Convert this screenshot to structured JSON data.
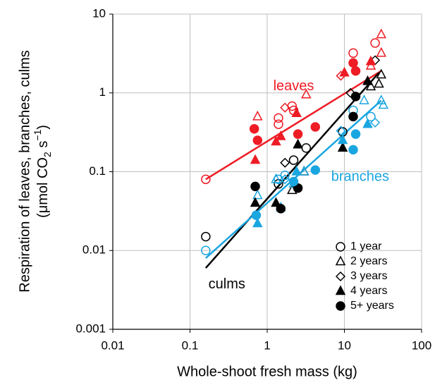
{
  "chart_data": {
    "type": "scatter",
    "xlabel": "Whole-shoot fresh mass (kg)",
    "ylabel": [
      "Respiration of leaves, branches, culms",
      "(μmol CO",
      "2",
      " s",
      "−1",
      ")"
    ],
    "log_x": true,
    "log_y": true,
    "grid": true,
    "xlim": [
      0.01,
      100
    ],
    "xticks": [
      0.01,
      0.1,
      1,
      10,
      100
    ],
    "ylim": [
      0.001,
      10
    ],
    "yticks": [
      0.001,
      0.01,
      0.1,
      1,
      10
    ],
    "legend": "lower right",
    "annotations": [
      {
        "text": "leaves",
        "color": "#ee1c25",
        "x": 2.2,
        "y": 1.2
      },
      {
        "text": "branches",
        "color": "#1aa6e0",
        "x": 16,
        "y": 0.085
      },
      {
        "text": "culms",
        "color": "#000000",
        "x": 0.3,
        "y": 0.0037
      }
    ],
    "series": [
      {
        "name": "1 year",
        "marker": "circle",
        "filled": false,
        "groups": [
          {
            "color": "#ee1c25",
            "x": [
              0.16,
              1.4,
              1.4,
              2.1,
              2.2,
              13,
              25
            ],
            "values": [
              0.08,
              0.48,
              0.4,
              0.68,
              0.6,
              3.2,
              4.3
            ]
          },
          {
            "color": "#000000",
            "x": [
              0.16,
              1.4,
              2.2,
              3.2,
              9.5
            ],
            "values": [
              0.015,
              0.07,
              0.14,
              0.2,
              0.32
            ]
          },
          {
            "color": "#1aa6e0",
            "x": [
              0.16,
              1.4,
              1.7,
              13,
              22
            ],
            "values": [
              0.01,
              0.08,
              0.09,
              0.6,
              0.5
            ]
          }
        ]
      },
      {
        "name": "2 years",
        "marker": "triangle",
        "filled": false,
        "groups": [
          {
            "color": "#ee1c25",
            "x": [
              0.75,
              3.2,
              22,
              30,
              30
            ],
            "values": [
              0.5,
              0.95,
              2.2,
              5.5,
              3.2
            ]
          },
          {
            "color": "#000000",
            "x": [
              2.1,
              3,
              22,
              28,
              30
            ],
            "values": [
              0.058,
              0.1,
              1.2,
              1.3,
              1.7
            ]
          },
          {
            "color": "#1aa6e0",
            "x": [
              0.75,
              1.3,
              2.2,
              3,
              18,
              30,
              32
            ],
            "values": [
              0.05,
              0.08,
              0.07,
              0.1,
              0.8,
              0.8,
              0.7
            ]
          }
        ]
      },
      {
        "name": "3 years",
        "marker": "diamond",
        "filled": false,
        "groups": [
          {
            "color": "#ee1c25",
            "x": [
              1.7,
              9
            ],
            "values": [
              0.65,
              1.65
            ]
          },
          {
            "color": "#000000",
            "x": [
              1.7,
              12,
              25
            ],
            "values": [
              0.13,
              1.0,
              2.6
            ]
          },
          {
            "color": "#1aa6e0",
            "x": [
              1.7,
              9,
              25
            ],
            "values": [
              0.08,
              0.33,
              0.42
            ]
          }
        ]
      },
      {
        "name": "4 years",
        "marker": "triangle",
        "filled": true,
        "groups": [
          {
            "color": "#ee1c25",
            "x": [
              0.7,
              1.3,
              1.5,
              2.4,
              10,
              22
            ],
            "values": [
              0.14,
              0.24,
              0.28,
              0.55,
              1.8,
              2.5
            ]
          },
          {
            "color": "#000000",
            "x": [
              0.7,
              1.3,
              2.5,
              9.5,
              20
            ],
            "values": [
              0.04,
              0.04,
              0.22,
              0.2,
              1.4
            ]
          },
          {
            "color": "#1aa6e0",
            "x": [
              0.75,
              1.5,
              2.4,
              9.5,
              20
            ],
            "values": [
              0.022,
              0.035,
              0.1,
              0.25,
              0.4
            ]
          }
        ]
      },
      {
        "name": "5+ years",
        "marker": "circle",
        "filled": true,
        "groups": [
          {
            "color": "#ee1c25",
            "x": [
              0.68,
              0.75,
              2.5,
              4.2,
              13,
              14
            ],
            "values": [
              0.35,
              0.25,
              0.3,
              0.37,
              2.4,
              1.9
            ]
          },
          {
            "color": "#000000",
            "x": [
              0.7,
              1.5,
              2.5,
              14,
              13
            ],
            "values": [
              0.065,
              0.034,
              0.062,
              0.9,
              0.5
            ]
          },
          {
            "color": "#1aa6e0",
            "x": [
              0.72,
              2.2,
              4.2,
              13,
              14
            ],
            "values": [
              0.028,
              0.075,
              0.105,
              0.19,
              0.3
            ]
          }
        ]
      }
    ],
    "trendlines": [
      {
        "color": "#ee1c25",
        "x": [
          0.16,
          30
        ],
        "values": [
          0.08,
          1.9
        ]
      },
      {
        "color": "#000000",
        "x": [
          0.16,
          28
        ],
        "values": [
          0.006,
          1.8
        ]
      },
      {
        "color": "#1aa6e0",
        "x": [
          0.16,
          30
        ],
        "values": [
          0.008,
          0.8
        ]
      }
    ]
  }
}
